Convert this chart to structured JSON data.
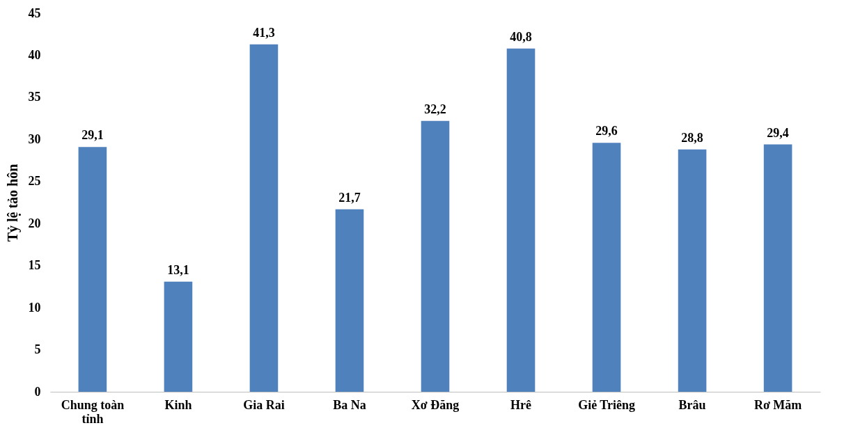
{
  "chart_data": {
    "type": "bar",
    "ylabel": "Tỷ lệ tảo hôn",
    "categories": [
      "Chung toàn tỉnh",
      "Kinh",
      "Gia Rai",
      "Ba Na",
      "Xơ Đăng",
      "Hrê",
      "Giẻ Triêng",
      "Brâu",
      "Rơ Măm"
    ],
    "values": [
      29.1,
      13.1,
      41.3,
      21.7,
      32.2,
      40.8,
      29.6,
      28.8,
      29.4
    ],
    "value_labels": [
      "29,1",
      "13,1",
      "41,3",
      "21,7",
      "32,2",
      "40,8",
      "29,6",
      "28,8",
      "29,4"
    ],
    "color": "#4f81bd",
    "ylim": [
      0,
      45
    ],
    "yticks": [
      0,
      5,
      10,
      15,
      20,
      25,
      30,
      35,
      40,
      45
    ],
    "grid": false
  }
}
